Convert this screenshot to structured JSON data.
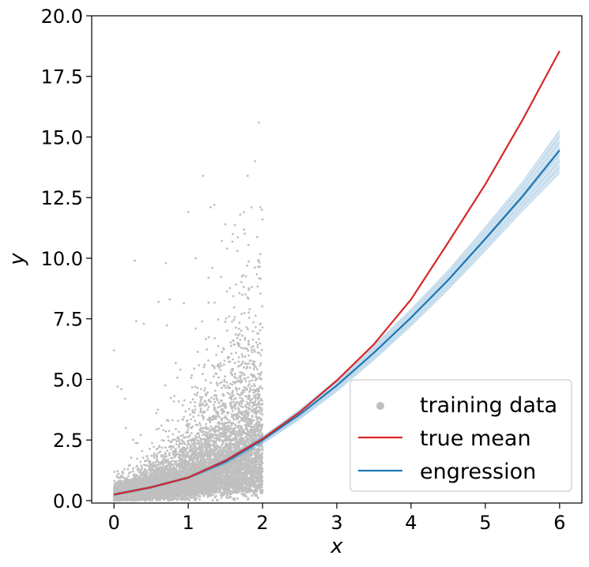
{
  "chart_data": {
    "type": "scatter",
    "xlabel": "x",
    "ylabel": "y",
    "xlim": [
      -0.3,
      6.3
    ],
    "ylim": [
      -0.1,
      20.0
    ],
    "xticks": [
      {
        "value": 0,
        "label": "0"
      },
      {
        "value": 1,
        "label": "1"
      },
      {
        "value": 2,
        "label": "2"
      },
      {
        "value": 3,
        "label": "3"
      },
      {
        "value": 4,
        "label": "4"
      },
      {
        "value": 5,
        "label": "5"
      },
      {
        "value": 6,
        "label": "6"
      }
    ],
    "yticks": [
      {
        "value": 0,
        "label": "0.0"
      },
      {
        "value": 2.5,
        "label": "2.5"
      },
      {
        "value": 5,
        "label": "5.0"
      },
      {
        "value": 7.5,
        "label": "7.5"
      },
      {
        "value": 10,
        "label": "10.0"
      },
      {
        "value": 12.5,
        "label": "12.5"
      },
      {
        "value": 15,
        "label": "15.0"
      },
      {
        "value": 17.5,
        "label": "17.5"
      },
      {
        "value": 20,
        "label": "20.0"
      }
    ],
    "grid": false,
    "legend_position": "lower-right",
    "legend": [
      {
        "label": "training data",
        "marker": "dot",
        "color": "#bfbfbf"
      },
      {
        "label": "true mean",
        "marker": "line",
        "color": "#d62728"
      },
      {
        "label": "engression",
        "marker": "line",
        "color": "#1f77b4"
      }
    ],
    "series": [
      {
        "name": "training data",
        "kind": "scatter",
        "color": "#bfbfbf",
        "x_range": [
          0,
          2
        ],
        "points": [
          [
            0.0,
            6.2
          ],
          [
            0.05,
            4.7
          ],
          [
            0.1,
            4.6
          ],
          [
            0.15,
            4.2
          ],
          [
            0.28,
            9.9
          ],
          [
            0.3,
            7.4
          ],
          [
            0.4,
            7.3
          ],
          [
            0.6,
            8.2
          ],
          [
            0.7,
            9.8
          ],
          [
            0.75,
            8.3
          ],
          [
            1.0,
            11.9
          ],
          [
            1.1,
            10.0
          ],
          [
            1.2,
            13.4
          ],
          [
            1.3,
            12.1
          ],
          [
            1.35,
            12.2
          ],
          [
            1.5,
            11.4
          ],
          [
            1.6,
            11.0
          ],
          [
            1.7,
            11.8
          ],
          [
            1.75,
            11.9
          ],
          [
            1.8,
            13.4
          ],
          [
            1.85,
            12.1
          ],
          [
            1.9,
            14.0
          ],
          [
            1.95,
            15.6
          ],
          [
            1.97,
            12.1
          ],
          [
            2.0,
            11.6
          ],
          [
            1.99,
            12.0
          ]
        ]
      },
      {
        "name": "true mean",
        "kind": "line",
        "color": "#d62728",
        "x": [
          0,
          0.5,
          1,
          1.5,
          2,
          2.5,
          3,
          3.5,
          4,
          4.5,
          5,
          5.5,
          6
        ],
        "y": [
          0.25,
          0.55,
          0.95,
          1.65,
          2.55,
          3.65,
          4.95,
          6.45,
          8.3,
          10.65,
          13.05,
          15.7,
          18.55
        ]
      },
      {
        "name": "engression",
        "kind": "line",
        "color": "#1f77b4",
        "x": [
          0,
          0.5,
          1,
          1.5,
          2,
          2.5,
          3,
          3.5,
          4,
          4.5,
          5,
          5.5,
          6
        ],
        "y": [
          0.25,
          0.55,
          0.95,
          1.6,
          2.5,
          3.55,
          4.75,
          6.1,
          7.55,
          9.1,
          10.8,
          12.55,
          14.45
        ],
        "band_lower": [
          0.2,
          0.5,
          0.9,
          1.5,
          2.35,
          3.35,
          4.5,
          5.8,
          7.2,
          8.7,
          10.3,
          11.95,
          13.5
        ],
        "band_upper": [
          0.3,
          0.6,
          1.0,
          1.7,
          2.65,
          3.75,
          5.0,
          6.4,
          7.9,
          9.5,
          11.3,
          13.15,
          15.3
        ]
      }
    ]
  }
}
